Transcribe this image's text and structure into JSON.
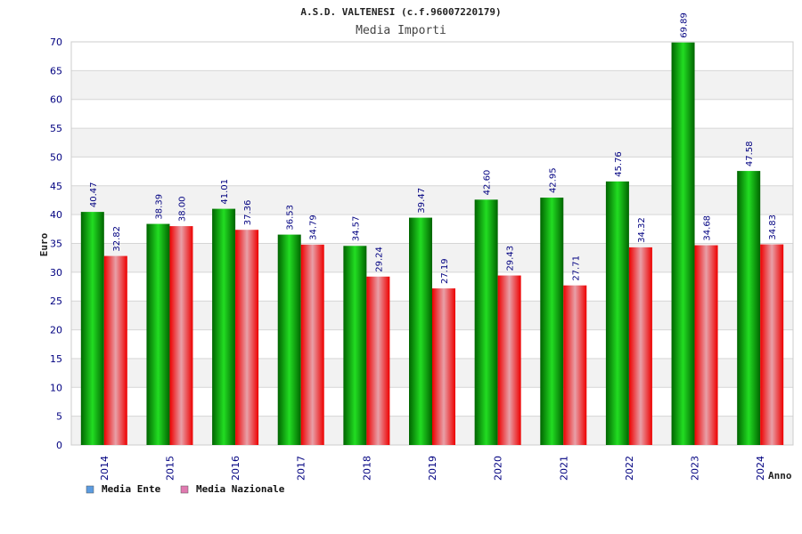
{
  "chart_data": {
    "type": "bar",
    "title": "A.S.D. VALTENESI (c.f.96007220179)",
    "subtitle": "Media Importi",
    "xlabel": "Anno",
    "ylabel": "Euro",
    "ylim": [
      0,
      70
    ],
    "yticks": [
      "0",
      "5",
      "10",
      "15",
      "20",
      "25",
      "30",
      "35",
      "40",
      "45",
      "50",
      "55",
      "60",
      "65",
      "70"
    ],
    "categories": [
      "2014",
      "2015",
      "2016",
      "2017",
      "2018",
      "2019",
      "2020",
      "2021",
      "2022",
      "2023",
      "2024"
    ],
    "series": [
      {
        "name": "Media Ente",
        "values": [
          40.47,
          38.39,
          41.01,
          36.53,
          34.57,
          39.47,
          42.6,
          42.95,
          45.76,
          69.89,
          47.58
        ],
        "labels": [
          "40.47",
          "38.39",
          "41.01",
          "36.53",
          "34.57",
          "39.47",
          "42.60",
          "42.95",
          "45.76",
          "69.89",
          "47.58"
        ],
        "color": "#00aa00"
      },
      {
        "name": "Media Nazionale",
        "values": [
          32.82,
          38.0,
          37.36,
          34.79,
          29.24,
          27.19,
          29.43,
          27.71,
          34.32,
          34.68,
          34.83
        ],
        "labels": [
          "32.82",
          "38.00",
          "37.36",
          "34.79",
          "29.24",
          "27.19",
          "29.43",
          "27.71",
          "34.32",
          "34.68",
          "34.83"
        ],
        "color": "#ee1122"
      }
    ],
    "legend": [
      {
        "name": "Media Ente",
        "color": "#5b9be0"
      },
      {
        "name": "Media Nazionale",
        "color": "#e07ab0"
      }
    ],
    "legend_position": "bottom-left",
    "grid": true
  }
}
